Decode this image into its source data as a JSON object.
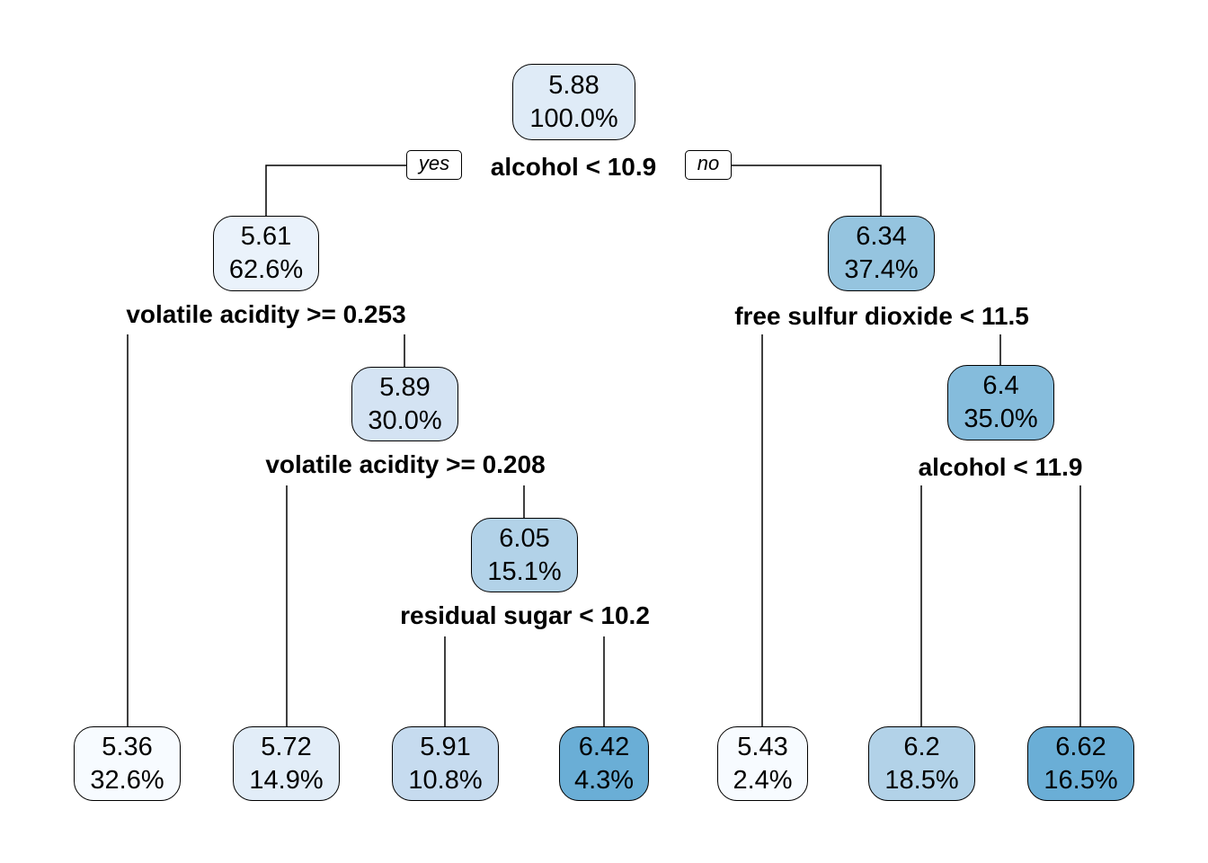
{
  "nodes": {
    "root": {
      "value": "5.88",
      "pct": "100.0%",
      "fill": "#dfebf7"
    },
    "n_l": {
      "value": "5.61",
      "pct": "62.6%",
      "fill": "#eaf2fb"
    },
    "n_r": {
      "value": "6.34",
      "pct": "37.4%",
      "fill": "#95c4df"
    },
    "n_lr": {
      "value": "5.89",
      "pct": "30.0%",
      "fill": "#d4e3f3"
    },
    "n_rr": {
      "value": "6.4",
      "pct": "35.0%",
      "fill": "#85bcdc"
    },
    "n_lrr": {
      "value": "6.05",
      "pct": "15.1%",
      "fill": "#b2d2e8"
    },
    "leaf1": {
      "value": "5.36",
      "pct": "32.6%",
      "fill": "#f7fbff"
    },
    "leaf2": {
      "value": "5.72",
      "pct": "14.9%",
      "fill": "#e2edf8"
    },
    "leaf3": {
      "value": "5.91",
      "pct": "10.8%",
      "fill": "#c6dbef"
    },
    "leaf4": {
      "value": "6.42",
      "pct": "4.3%",
      "fill": "#6aaed6"
    },
    "leaf5": {
      "value": "5.43",
      "pct": "2.4%",
      "fill": "#f7fbff"
    },
    "leaf6": {
      "value": "6.2",
      "pct": "18.5%",
      "fill": "#b2d2e8"
    },
    "leaf7": {
      "value": "6.62",
      "pct": "16.5%",
      "fill": "#6aaed6"
    }
  },
  "splits": {
    "root": "alcohol < 10.9",
    "n_l": "volatile acidity >= 0.253",
    "n_r": "free sulfur dioxide < 11.5",
    "n_lr": "volatile acidity >= 0.208",
    "n_rr": "alcohol < 11.9",
    "n_lrr": "residual sugar < 10.2"
  },
  "edge_labels": {
    "yes": "yes",
    "no": "no"
  }
}
